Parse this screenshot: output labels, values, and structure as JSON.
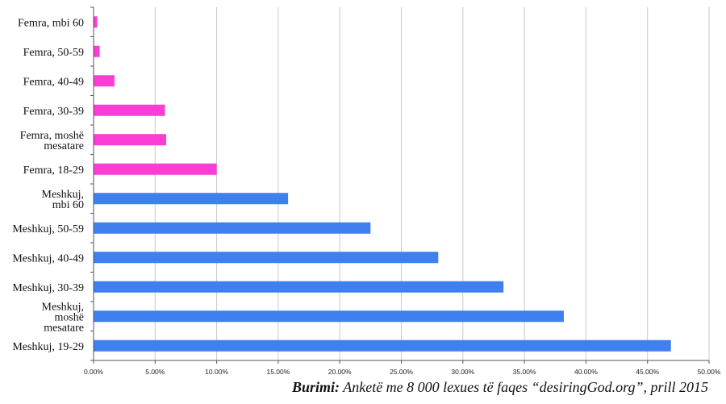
{
  "chart_data": {
    "type": "bar",
    "orientation": "horizontal",
    "categories": [
      "Femra, mbi 60",
      "Femra, 50-59",
      "Femra, 40-49",
      "Femra, 30-39",
      "Femra, moshë mesatare",
      "Femra, 18-29",
      "Meshkuj, mbi 60",
      "Meshkuj, 50-59",
      "Meshkuj, 40-49",
      "Meshkuj, 30-39",
      "Meshkuj, moshë mesatare",
      "Meshkuj, 19-29"
    ],
    "category_lines": [
      [
        "Femra, mbi 60"
      ],
      [
        "Femra, 50-59"
      ],
      [
        "Femra, 40-49"
      ],
      [
        "Femra, 30-39"
      ],
      [
        "Femra, moshë",
        "mesatare"
      ],
      [
        "Femra, 18-29"
      ],
      [
        "Meshkuj,",
        "mbi 60"
      ],
      [
        "Meshkuj, 50-59"
      ],
      [
        "Meshkuj, 40-49"
      ],
      [
        "Meshkuj, 30-39"
      ],
      [
        "Meshkuj,",
        "moshë",
        "mesatare"
      ],
      [
        "Meshkuj, 19-29"
      ]
    ],
    "values": [
      0.3,
      0.5,
      1.7,
      5.8,
      5.9,
      10.0,
      15.8,
      22.5,
      28.0,
      33.3,
      38.2,
      46.9
    ],
    "colors": [
      "#fa3dd4",
      "#fa3dd4",
      "#fa3dd4",
      "#fa3dd4",
      "#fa3dd4",
      "#fa3dd4",
      "#3f7fef",
      "#3f7fef",
      "#3f7fef",
      "#3f7fef",
      "#3f7fef",
      "#3f7fef"
    ],
    "xlim": [
      0,
      50
    ],
    "x_ticks": [
      0,
      5,
      10,
      15,
      20,
      25,
      30,
      35,
      40,
      45,
      50
    ],
    "x_tick_labels": [
      "0.00%",
      "5.00%",
      "10.00%",
      "15.00%",
      "20.00%",
      "25.00%",
      "30.00%",
      "35.00%",
      "40.00%",
      "45.00%",
      "50.00%"
    ],
    "grid": true,
    "title": "",
    "xlabel": "",
    "ylabel": ""
  },
  "caption": {
    "lead": "Burimi:",
    "rest": " Anketë me 8 000 lexues të faqes “desiringGod.org”, prill 2015"
  }
}
